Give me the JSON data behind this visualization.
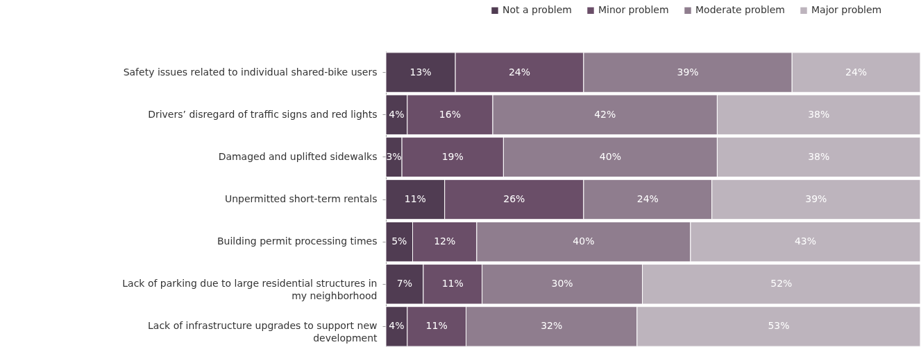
{
  "chart_data": {
    "type": "bar",
    "orientation": "horizontal",
    "stacked": true,
    "legend": "top right",
    "categories": [
      "Safety issues related to individual shared-bike users",
      "Drivers’ disregard of traffic signs and red lights",
      "Damaged and uplifted sidewalks",
      "Unpermitted short-term rentals",
      "Building permit processing times",
      "Lack of parking due to large residential structures in my neighborhood",
      "Lack of infrastructure upgrades to support new development"
    ],
    "series": [
      {
        "name": "Not a problem",
        "color": "#503c52",
        "values": [
          13,
          4,
          3,
          11,
          5,
          7,
          4
        ],
        "value_labels": [
          "13%",
          "4%",
          "3%",
          "11%",
          "5%",
          "7%",
          "4%"
        ]
      },
      {
        "name": "Minor problem",
        "color": "#6a4e68",
        "values": [
          24,
          16,
          19,
          26,
          12,
          11,
          11
        ],
        "value_labels": [
          "24%",
          "16%",
          "19%",
          "26%",
          "12%",
          "11%",
          "11%"
        ]
      },
      {
        "name": "Moderate problem",
        "color": "#8f7d8e",
        "values": [
          39,
          42,
          40,
          24,
          40,
          30,
          32
        ],
        "value_labels": [
          "39%",
          "42%",
          "40%",
          "24%",
          "40%",
          "30%",
          "32%"
        ]
      },
      {
        "name": "Major problem",
        "color": "#bdb4bd",
        "values": [
          24,
          38,
          38,
          39,
          43,
          52,
          53
        ],
        "value_labels": [
          "24%",
          "38%",
          "38%",
          "39%",
          "43%",
          "52%",
          "53%"
        ]
      }
    ]
  }
}
